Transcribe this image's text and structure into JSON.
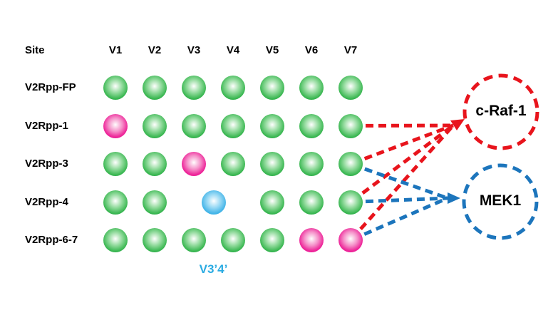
{
  "table": {
    "site_header": "Site",
    "columns": [
      "V1",
      "V2",
      "V3",
      "V4",
      "V5",
      "V6",
      "V7"
    ],
    "rows": [
      {
        "label": "V2Rpp-FP",
        "dots": [
          "green",
          "green",
          "green",
          "green",
          "green",
          "green",
          "green"
        ]
      },
      {
        "label": "V2Rpp-1",
        "dots": [
          "magenta",
          "green",
          "green",
          "green",
          "green",
          "green",
          "green"
        ]
      },
      {
        "label": "V2Rpp-3",
        "dots": [
          "green",
          "green",
          "magenta",
          "green",
          "green",
          "green",
          "green"
        ]
      },
      {
        "label": "V2Rpp-4",
        "dots": [
          "green",
          "green",
          null,
          null,
          "green",
          "green",
          "green"
        ],
        "merged_dot": {
          "color": "blue",
          "between": [
            "V3",
            "V4"
          ]
        }
      },
      {
        "label": "V2Rpp-6-7",
        "dots": [
          "green",
          "green",
          "green",
          "green",
          "green",
          "magenta",
          "magenta"
        ]
      }
    ]
  },
  "annotation": {
    "label": "V3’4’",
    "color": "#29abe2"
  },
  "targets": [
    {
      "id": "c-Raf-1",
      "label": "c-Raf-1",
      "ring_color": "#e8141c"
    },
    {
      "id": "MEK1",
      "label": "MEK1",
      "ring_color": "#1c75bc"
    }
  ],
  "connections": [
    {
      "from_row": "V2Rpp-1",
      "from_col": "V7",
      "to": "c-Raf-1",
      "color": "red"
    },
    {
      "from_row": "V2Rpp-3",
      "from_col": "V7",
      "to": "c-Raf-1",
      "color": "red"
    },
    {
      "from_row": "V2Rpp-4",
      "from_col": "V7",
      "to": "c-Raf-1",
      "color": "red"
    },
    {
      "from_row": "V2Rpp-6-7",
      "from_col": "V7",
      "to": "c-Raf-1",
      "color": "red"
    },
    {
      "from_row": "V2Rpp-3",
      "from_col": "V7",
      "to": "MEK1",
      "color": "blue"
    },
    {
      "from_row": "V2Rpp-4",
      "from_col": "V7",
      "to": "MEK1",
      "color": "blue"
    },
    {
      "from_row": "V2Rpp-6-7",
      "from_col": "V7",
      "to": "MEK1",
      "color": "blue"
    }
  ],
  "colors": {
    "dot_green": "#1ba93e",
    "dot_magenta": "#ec008c",
    "dot_blue": "#29abe2",
    "line_red": "#e8141c",
    "line_blue": "#1c75bc",
    "text": "#000000"
  }
}
